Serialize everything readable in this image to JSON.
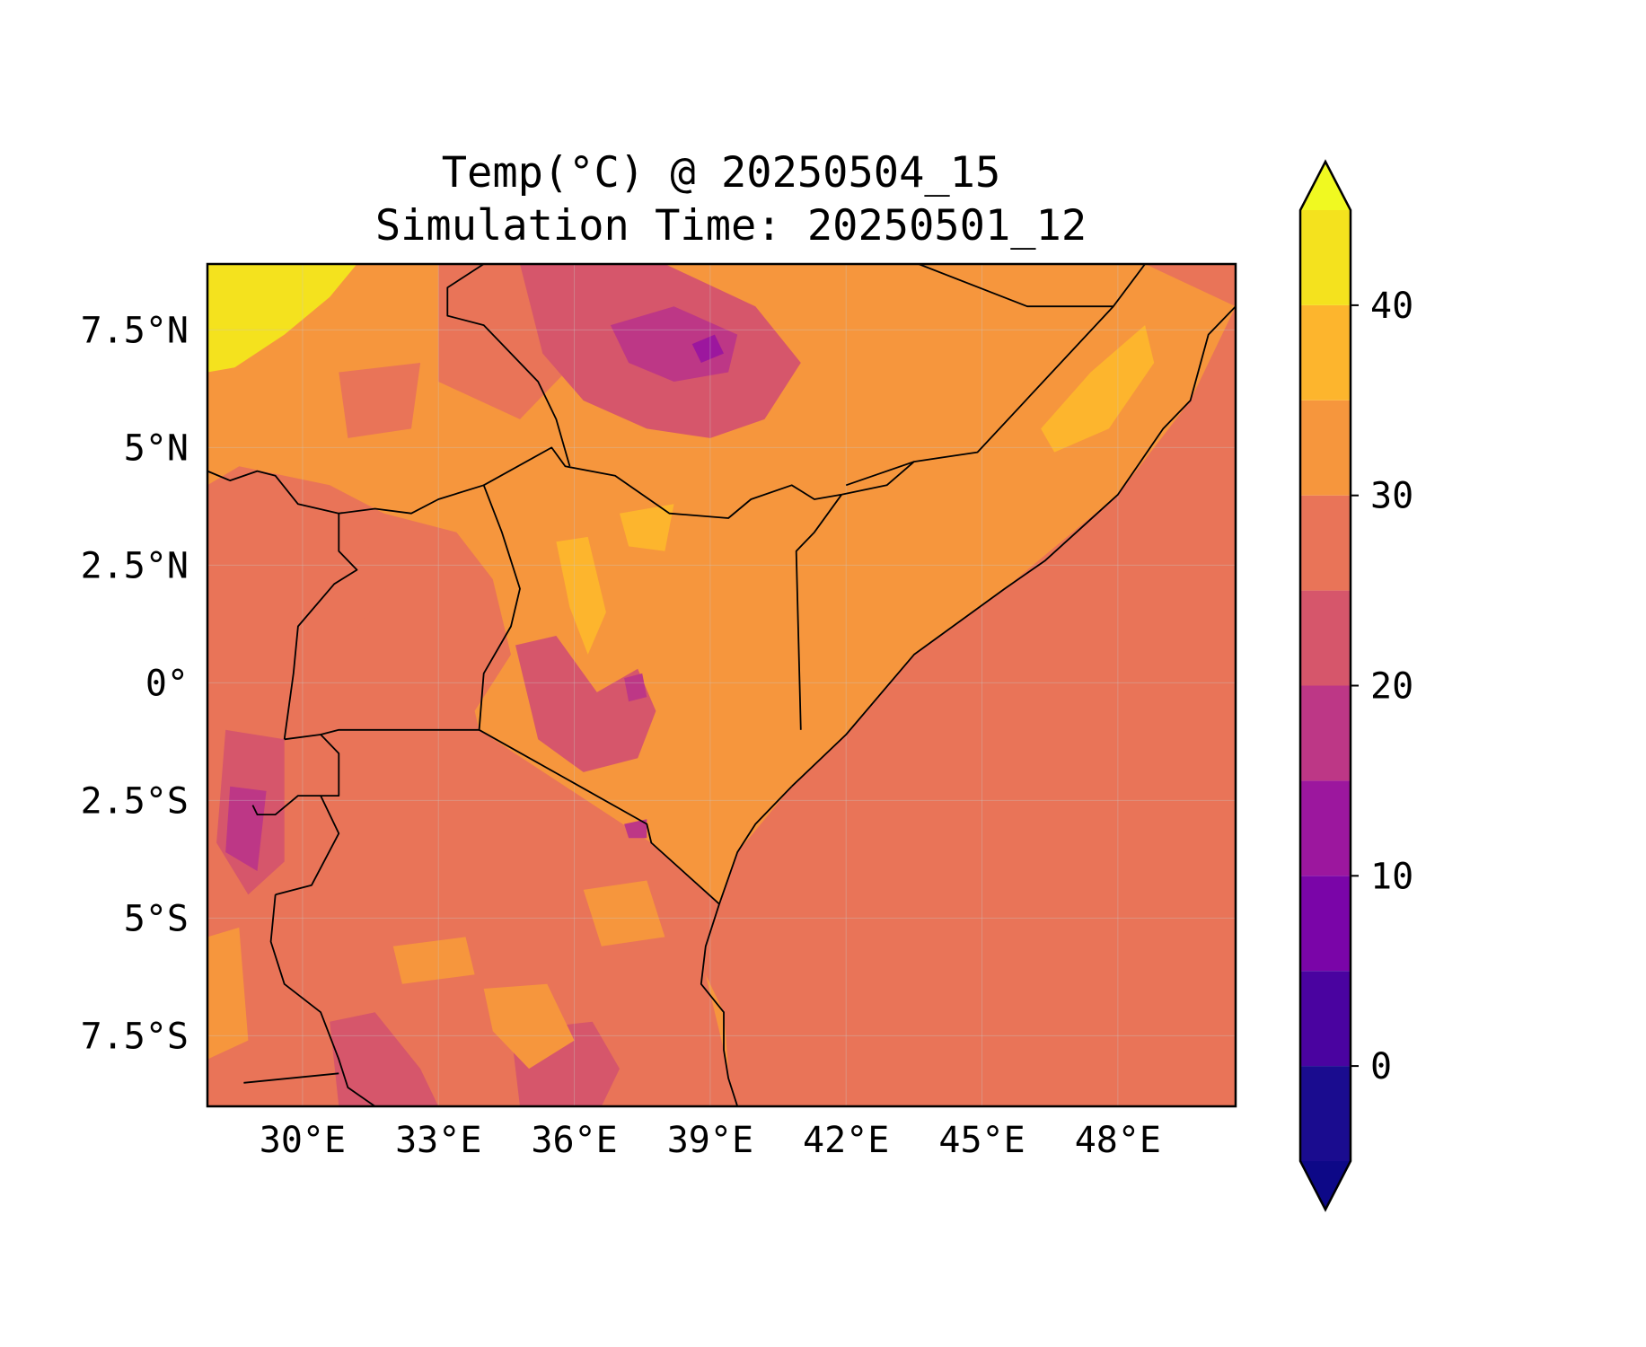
{
  "title_line1": "Temp(°C) @ 20250504_15",
  "title_line2": "Simulation Time: 20250501_12",
  "map": {
    "lon_range": [
      27.9,
      50.6
    ],
    "lat_range": [
      -9.0,
      8.9
    ],
    "lon_ticks": [
      {
        "value": 30,
        "label": "30°E"
      },
      {
        "value": 33,
        "label": "33°E"
      },
      {
        "value": 36,
        "label": "36°E"
      },
      {
        "value": 39,
        "label": "39°E"
      },
      {
        "value": 42,
        "label": "42°E"
      },
      {
        "value": 45,
        "label": "45°E"
      },
      {
        "value": 48,
        "label": "48°E"
      }
    ],
    "lat_ticks": [
      {
        "value": 7.5,
        "label": "7.5°N"
      },
      {
        "value": 5,
        "label": "5°N"
      },
      {
        "value": 2.5,
        "label": "2.5°N"
      },
      {
        "value": 0,
        "label": "0°"
      },
      {
        "value": -2.5,
        "label": "2.5°S"
      },
      {
        "value": -5,
        "label": "5°S"
      },
      {
        "value": -7.5,
        "label": "7.5°S"
      }
    ],
    "gridlines": true,
    "ocean_color": "#e97458"
  },
  "colorbar": {
    "levels": [
      -5,
      0,
      5,
      10,
      15,
      20,
      25,
      30,
      35,
      40,
      45
    ],
    "colors": [
      "#1a0c8f",
      "#4a03a0",
      "#7a05a8",
      "#9c179e",
      "#bd3786",
      "#d6566b",
      "#e97458",
      "#f6963d",
      "#fdb52d",
      "#f4e21e"
    ],
    "under_color": "#0d0887",
    "over_color": "#f0f921",
    "extend": "both",
    "tick_labels": [
      {
        "value": 0,
        "label": "0"
      },
      {
        "value": 10,
        "label": "10"
      },
      {
        "value": 20,
        "label": "20"
      },
      {
        "value": 30,
        "label": "30"
      },
      {
        "value": 40,
        "label": "40"
      }
    ]
  },
  "regions": [
    {
      "name": "sudan-north-hot",
      "level": 40,
      "pts": [
        [
          27.9,
          8.9
        ],
        [
          31.2,
          8.9
        ],
        [
          30.6,
          8.2
        ],
        [
          29.6,
          7.4
        ],
        [
          28.5,
          6.7
        ],
        [
          27.9,
          6.6
        ]
      ]
    },
    {
      "name": "ethiopia-highlands",
      "level": 20,
      "pts": [
        [
          34.8,
          8.9
        ],
        [
          38.0,
          8.9
        ],
        [
          40.0,
          8.0
        ],
        [
          41.0,
          6.8
        ],
        [
          40.2,
          5.6
        ],
        [
          39.0,
          5.2
        ],
        [
          37.6,
          5.4
        ],
        [
          36.2,
          6.0
        ],
        [
          35.3,
          7.0
        ]
      ]
    },
    {
      "name": "ethiopia-peaks",
      "level": 15,
      "pts": [
        [
          36.8,
          7.6
        ],
        [
          38.2,
          8.0
        ],
        [
          39.6,
          7.4
        ],
        [
          39.4,
          6.6
        ],
        [
          38.2,
          6.4
        ],
        [
          37.2,
          6.8
        ]
      ]
    },
    {
      "name": "ethiopia-coldest",
      "level": 10,
      "pts": [
        [
          38.6,
          7.2
        ],
        [
          39.1,
          7.4
        ],
        [
          39.3,
          7.0
        ],
        [
          38.8,
          6.8
        ]
      ]
    },
    {
      "name": "somalia-hot-patch",
      "level": 35,
      "pts": [
        [
          46.3,
          5.4
        ],
        [
          47.4,
          6.6
        ],
        [
          48.6,
          7.6
        ],
        [
          48.8,
          6.8
        ],
        [
          47.8,
          5.4
        ],
        [
          46.6,
          4.9
        ]
      ]
    },
    {
      "name": "lake-turkana-hot",
      "level": 35,
      "pts": [
        [
          35.6,
          3.0
        ],
        [
          36.3,
          3.1
        ],
        [
          36.7,
          1.5
        ],
        [
          36.3,
          0.6
        ],
        [
          35.9,
          1.6
        ]
      ]
    },
    {
      "name": "north-kenya-hot",
      "level": 35,
      "pts": [
        [
          37.0,
          3.6
        ],
        [
          38.2,
          3.8
        ],
        [
          38.0,
          2.8
        ],
        [
          37.2,
          2.9
        ]
      ]
    },
    {
      "name": "uganda-west",
      "level": 25,
      "pts": [
        [
          29.6,
          2.8
        ],
        [
          31.2,
          3.2
        ],
        [
          32.0,
          2.2
        ],
        [
          31.0,
          0.9
        ],
        [
          29.8,
          0.2
        ]
      ]
    },
    {
      "name": "kenya-highlands",
      "level": 20,
      "pts": [
        [
          34.7,
          0.8
        ],
        [
          35.6,
          1.0
        ],
        [
          36.5,
          -0.2
        ],
        [
          37.4,
          0.3
        ],
        [
          37.8,
          -0.6
        ],
        [
          37.4,
          -1.6
        ],
        [
          36.2,
          -1.9
        ],
        [
          35.2,
          -1.2
        ]
      ]
    },
    {
      "name": "mt-kenya",
      "level": 15,
      "pts": [
        [
          37.1,
          0.1
        ],
        [
          37.5,
          0.2
        ],
        [
          37.6,
          -0.3
        ],
        [
          37.2,
          -0.4
        ]
      ]
    },
    {
      "name": "kilimanjaro",
      "level": 15,
      "pts": [
        [
          37.1,
          -3.0
        ],
        [
          37.6,
          -2.9
        ],
        [
          37.6,
          -3.3
        ],
        [
          37.2,
          -3.3
        ]
      ]
    },
    {
      "name": "rift-west",
      "level": 20,
      "pts": [
        [
          28.3,
          -1.0
        ],
        [
          29.6,
          -1.2
        ],
        [
          29.6,
          -3.8
        ],
        [
          28.8,
          -4.5
        ],
        [
          28.1,
          -3.4
        ]
      ]
    },
    {
      "name": "rwanda-burundi-cold",
      "level": 15,
      "pts": [
        [
          28.4,
          -2.2
        ],
        [
          29.2,
          -2.3
        ],
        [
          29.0,
          -4.0
        ],
        [
          28.3,
          -3.6
        ]
      ]
    },
    {
      "name": "tanzania-south-cool",
      "level": 20,
      "pts": [
        [
          30.6,
          -7.2
        ],
        [
          31.6,
          -7.0
        ],
        [
          32.6,
          -8.2
        ],
        [
          33.0,
          -9.0
        ],
        [
          30.8,
          -9.0
        ]
      ]
    },
    {
      "name": "tanzania-south-cool-2",
      "level": 20,
      "pts": [
        [
          34.6,
          -7.4
        ],
        [
          36.4,
          -7.2
        ],
        [
          37.0,
          -8.2
        ],
        [
          36.6,
          -9.0
        ],
        [
          34.8,
          -9.0
        ]
      ]
    },
    {
      "name": "tanzania-warm-1",
      "level": 30,
      "pts": [
        [
          34.0,
          -6.5
        ],
        [
          35.4,
          -6.4
        ],
        [
          36.0,
          -7.6
        ],
        [
          35.0,
          -8.2
        ],
        [
          34.2,
          -7.4
        ]
      ]
    },
    {
      "name": "tanzania-warm-2",
      "level": 30,
      "pts": [
        [
          32.0,
          -5.6
        ],
        [
          33.6,
          -5.4
        ],
        [
          33.8,
          -6.2
        ],
        [
          32.2,
          -6.4
        ]
      ]
    },
    {
      "name": "tanzania-warm-3",
      "level": 30,
      "pts": [
        [
          36.2,
          -4.4
        ],
        [
          37.6,
          -4.2
        ],
        [
          38.0,
          -5.4
        ],
        [
          36.6,
          -5.6
        ]
      ]
    },
    {
      "name": "west-edge-warm",
      "level": 30,
      "pts": [
        [
          27.9,
          -5.4
        ],
        [
          28.6,
          -5.2
        ],
        [
          28.8,
          -7.6
        ],
        [
          27.9,
          -8.0
        ]
      ]
    }
  ],
  "land_base": {
    "level": 30,
    "pts": [
      [
        27.9,
        8.9
      ],
      [
        39.0,
        8.9
      ],
      [
        48.6,
        8.9
      ],
      [
        50.6,
        8.0
      ],
      [
        49.6,
        6.0
      ],
      [
        48.0,
        4.0
      ],
      [
        45.5,
        2.0
      ],
      [
        43.5,
        0.6
      ],
      [
        42.0,
        -1.1
      ],
      [
        40.8,
        -2.2
      ],
      [
        39.6,
        -3.6
      ],
      [
        39.2,
        -4.7
      ],
      [
        38.9,
        -6.2
      ],
      [
        39.3,
        -7.0
      ],
      [
        39.4,
        -8.2
      ],
      [
        39.6,
        -9.0
      ],
      [
        27.9,
        -9.0
      ]
    ]
  },
  "land_cool_patches": [
    {
      "level": 25,
      "pts": [
        [
          28.6,
          4.6
        ],
        [
          30.6,
          4.2
        ],
        [
          31.8,
          3.6
        ],
        [
          33.4,
          3.2
        ],
        [
          34.2,
          2.2
        ],
        [
          34.6,
          0.6
        ],
        [
          33.8,
          -0.6
        ],
        [
          33.9,
          -1.0
        ],
        [
          37.7,
          -3.4
        ],
        [
          39.2,
          -4.7
        ],
        [
          38.9,
          -6.2
        ],
        [
          39.4,
          -8.2
        ],
        [
          39.6,
          -9.0
        ],
        [
          27.9,
          -9.0
        ],
        [
          27.9,
          4.2
        ]
      ]
    },
    {
      "level": 25,
      "pts": [
        [
          33.0,
          8.9
        ],
        [
          36.0,
          8.9
        ],
        [
          36.2,
          7.0
        ],
        [
          34.8,
          5.6
        ],
        [
          33.0,
          6.4
        ]
      ]
    },
    {
      "level": 25,
      "pts": [
        [
          30.8,
          6.6
        ],
        [
          32.6,
          6.8
        ],
        [
          32.4,
          5.4
        ],
        [
          31.0,
          5.2
        ]
      ]
    }
  ],
  "borders": [
    [
      [
        33.9,
        -1.0
      ],
      [
        37.6,
        -3.0
      ],
      [
        37.7,
        -3.4
      ],
      [
        39.2,
        -4.7
      ]
    ],
    [
      [
        30.4,
        -1.1
      ],
      [
        30.8,
        -1.0
      ],
      [
        33.9,
        -1.0
      ]
    ],
    [
      [
        33.9,
        -1.0
      ],
      [
        34.0,
        0.2
      ],
      [
        34.6,
        1.2
      ],
      [
        34.8,
        2.0
      ],
      [
        34.4,
        3.2
      ],
      [
        34.0,
        4.2
      ],
      [
        35.5,
        5.0
      ],
      [
        35.8,
        4.6
      ],
      [
        36.9,
        4.4
      ],
      [
        38.1,
        3.6
      ],
      [
        39.4,
        3.5
      ],
      [
        39.9,
        3.9
      ],
      [
        40.8,
        4.2
      ],
      [
        41.3,
        3.9
      ],
      [
        41.9,
        4.0
      ]
    ],
    [
      [
        41.9,
        4.0
      ],
      [
        42.9,
        4.2
      ],
      [
        43.5,
        4.7
      ],
      [
        44.9,
        4.9
      ],
      [
        47.9,
        8.0
      ],
      [
        48.6,
        8.9
      ]
    ],
    [
      [
        41.0,
        -1.0
      ],
      [
        40.9,
        2.8
      ],
      [
        41.3,
        3.2
      ],
      [
        41.9,
        4.0
      ]
    ],
    [
      [
        43.5,
        4.7
      ],
      [
        42.0,
        4.2
      ]
    ],
    [
      [
        43.6,
        8.9
      ],
      [
        46.0,
        8.0
      ],
      [
        47.9,
        8.0
      ]
    ],
    [
      [
        29.6,
        -1.2
      ],
      [
        30.4,
        -1.1
      ],
      [
        30.8,
        -1.5
      ],
      [
        30.8,
        -2.4
      ],
      [
        30.4,
        -2.4
      ],
      [
        30.8,
        -3.2
      ],
      [
        30.2,
        -4.3
      ],
      [
        29.4,
        -4.5
      ]
    ],
    [
      [
        28.9,
        -2.6
      ],
      [
        29.0,
        -2.8
      ],
      [
        29.4,
        -2.8
      ],
      [
        29.9,
        -2.4
      ],
      [
        30.4,
        -2.4
      ]
    ],
    [
      [
        27.9,
        4.5
      ],
      [
        28.4,
        4.3
      ],
      [
        29.0,
        4.5
      ],
      [
        29.4,
        4.4
      ],
      [
        29.9,
        3.8
      ],
      [
        30.8,
        3.6
      ],
      [
        31.6,
        3.7
      ],
      [
        32.4,
        3.6
      ],
      [
        33.0,
        3.9
      ],
      [
        34.0,
        4.2
      ]
    ],
    [
      [
        29.6,
        -1.2
      ],
      [
        29.8,
        0.2
      ],
      [
        29.9,
        1.2
      ],
      [
        30.7,
        2.1
      ],
      [
        31.2,
        2.4
      ],
      [
        30.8,
        2.8
      ],
      [
        30.8,
        3.6
      ]
    ],
    [
      [
        34.0,
        8.9
      ],
      [
        33.2,
        8.4
      ],
      [
        33.2,
        7.8
      ],
      [
        34.0,
        7.6
      ],
      [
        35.2,
        6.4
      ],
      [
        35.6,
        5.6
      ],
      [
        35.9,
        4.6
      ]
    ],
    [
      [
        29.4,
        -4.5
      ],
      [
        29.3,
        -5.5
      ],
      [
        29.6,
        -6.4
      ],
      [
        30.4,
        -7.0
      ],
      [
        30.8,
        -8.0
      ],
      [
        31.0,
        -8.6
      ],
      [
        31.6,
        -9.0
      ]
    ],
    [
      [
        28.7,
        -8.5
      ],
      [
        30.8,
        -8.3
      ]
    ],
    [
      [
        40.8,
        -2.2
      ],
      [
        40.0,
        -3.0
      ],
      [
        39.6,
        -3.6
      ],
      [
        39.2,
        -4.7
      ],
      [
        38.9,
        -5.6
      ],
      [
        38.8,
        -6.4
      ],
      [
        39.3,
        -7.0
      ],
      [
        39.3,
        -7.8
      ],
      [
        39.4,
        -8.4
      ],
      [
        39.6,
        -9.0
      ]
    ],
    [
      [
        40.8,
        -2.2
      ],
      [
        42.0,
        -1.1
      ],
      [
        43.5,
        0.6
      ],
      [
        45.5,
        2.0
      ],
      [
        46.4,
        2.6
      ],
      [
        48.0,
        4.0
      ],
      [
        49.0,
        5.4
      ],
      [
        49.6,
        6.0
      ],
      [
        50.0,
        7.4
      ],
      [
        50.6,
        8.0
      ]
    ]
  ]
}
